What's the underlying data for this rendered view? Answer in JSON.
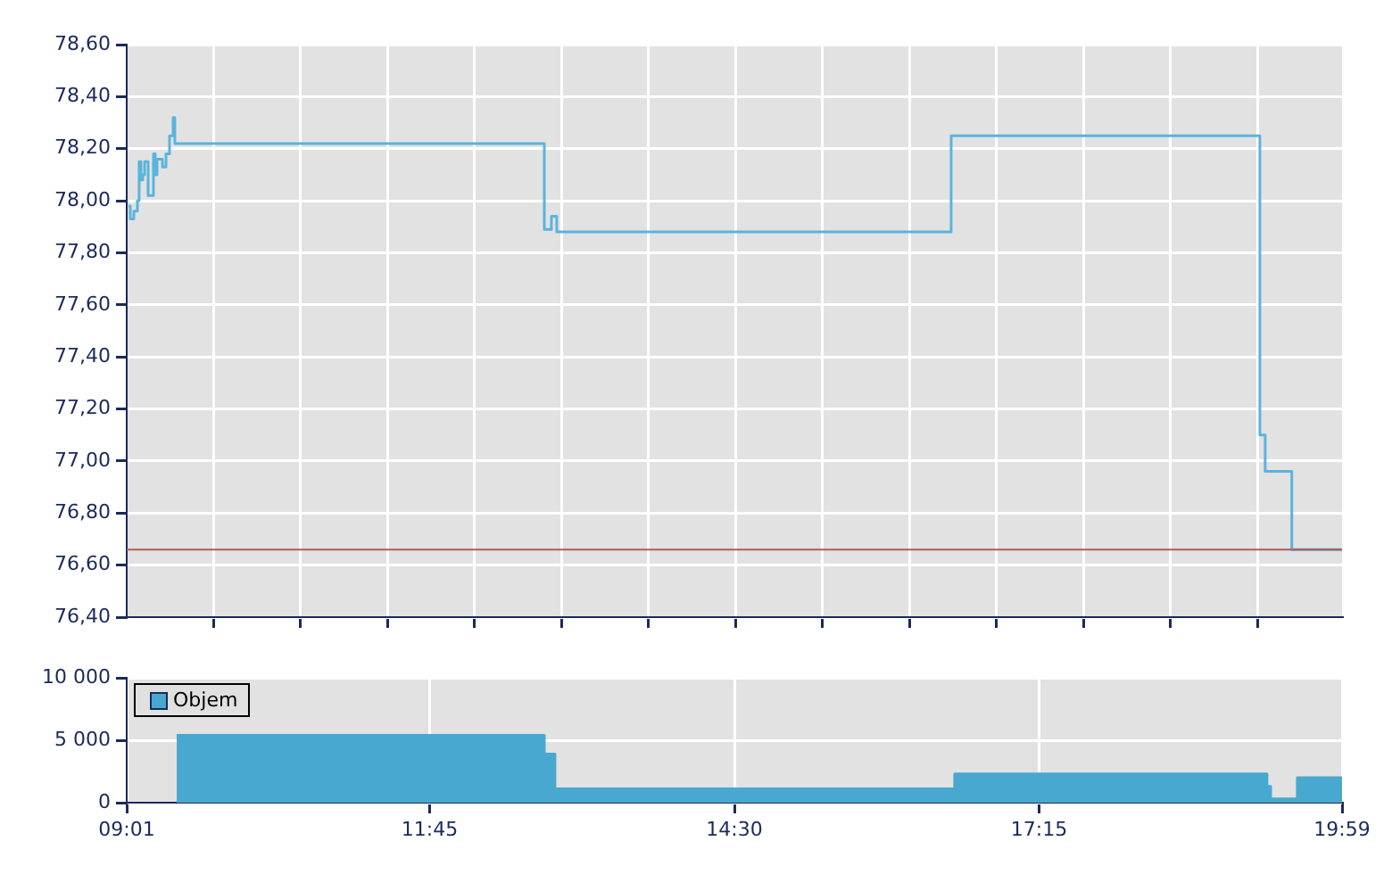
{
  "chart_data": [
    {
      "type": "step",
      "x": [
        9.033,
        9.049,
        9.081,
        9.113,
        9.129,
        9.146,
        9.162,
        9.178,
        9.21,
        9.258,
        9.274,
        9.29,
        9.339,
        9.371,
        9.403,
        9.435,
        9.451,
        12.785,
        12.849,
        12.897,
        16.456,
        19.242,
        19.29,
        19.53,
        19.983
      ],
      "series": [
        {
          "color": "#5ab4dc",
          "values": [
            77.98,
            77.93,
            77.96,
            78.0,
            78.15,
            78.08,
            78.1,
            78.15,
            78.02,
            78.18,
            78.1,
            78.16,
            78.13,
            78.18,
            78.25,
            78.32,
            78.22,
            77.89,
            77.94,
            77.88,
            78.25,
            77.1,
            76.96,
            76.66,
            76.66
          ]
        }
      ],
      "xlim": [
        9.0167,
        19.9833
      ],
      "xticks": [
        {
          "value": 9.8,
          "label": null
        },
        {
          "value": 10.58,
          "label": null
        },
        {
          "value": 11.37,
          "label": null
        },
        {
          "value": 12.15,
          "label": null
        },
        {
          "value": 12.94,
          "label": null
        },
        {
          "value": 13.72,
          "label": null
        },
        {
          "value": 14.51,
          "label": null
        },
        {
          "value": 15.29,
          "label": null
        },
        {
          "value": 16.08,
          "label": null
        },
        {
          "value": 16.86,
          "label": null
        },
        {
          "value": 17.65,
          "label": null
        },
        {
          "value": 18.43,
          "label": null
        },
        {
          "value": 19.22,
          "label": null
        }
      ],
      "ylim": [
        76.4,
        78.6
      ],
      "yticks": [
        {
          "value": 76.4,
          "label": "76,40"
        },
        {
          "value": 76.6,
          "label": "76,60"
        },
        {
          "value": 76.8,
          "label": "76,80"
        },
        {
          "value": 77.0,
          "label": "77,00"
        },
        {
          "value": 77.2,
          "label": "77,20"
        },
        {
          "value": 77.4,
          "label": "77,40"
        },
        {
          "value": 77.6,
          "label": "77,60"
        },
        {
          "value": 77.8,
          "label": "77,80"
        },
        {
          "value": 78.0,
          "label": "78,00"
        },
        {
          "value": 78.2,
          "label": "78,20"
        },
        {
          "value": 78.4,
          "label": "78,40"
        },
        {
          "value": 78.6,
          "label": "78,60"
        }
      ],
      "ref_lines": [
        {
          "axis": "y",
          "value": 76.66,
          "color": "#b05a5a"
        }
      ],
      "grid": true,
      "tick_labels": "y",
      "marker": "none"
    },
    {
      "type": "area",
      "x": [
        9.468,
        12.785,
        12.785,
        12.881,
        12.881,
        16.488,
        16.488,
        19.306,
        19.306,
        19.339,
        19.339,
        19.58,
        19.58,
        19.983
      ],
      "series": [
        {
          "name": "Objem",
          "color": "#48a8d0",
          "values": [
            5400,
            5400,
            3900,
            3900,
            1100,
            1100,
            2300,
            2300,
            1300,
            1300,
            300,
            300,
            2000,
            2000
          ]
        }
      ],
      "xlim": [
        9.0167,
        19.9833
      ],
      "xticks": [
        {
          "value": 9.0167,
          "label": "09:01"
        },
        {
          "value": 11.75,
          "label": "11:45"
        },
        {
          "value": 14.5,
          "label": "14:30"
        },
        {
          "value": 17.25,
          "label": "17:15"
        },
        {
          "value": 19.9833,
          "label": "19:59"
        }
      ],
      "ylim": [
        0,
        10000
      ],
      "yticks": [
        0,
        {
          "value": 5000,
          "label": "5 000"
        },
        {
          "value": 10000,
          "label": "10 000"
        }
      ],
      "grid": true,
      "legend": "top left",
      "marker": "none"
    }
  ]
}
